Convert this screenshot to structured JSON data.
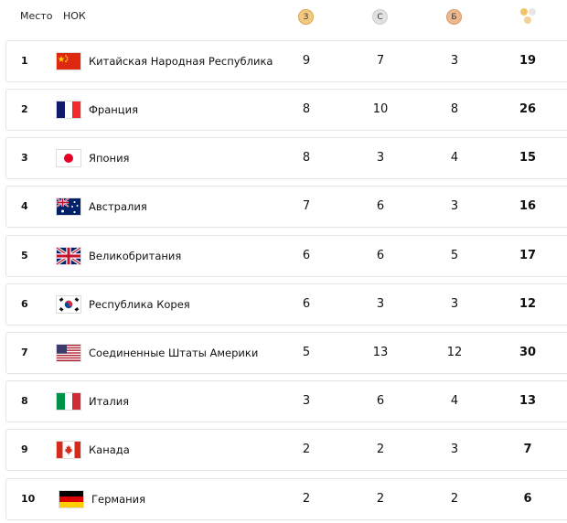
{
  "header": {
    "rank_label": "Место",
    "noc_label": "НОК",
    "gold_label": "З",
    "silver_label": "С",
    "bronze_label": "Б",
    "total_icon": "medals-icon"
  },
  "colors": {
    "gold": "#f3c980",
    "silver": "#e1e1e1",
    "bronze": "#edb88d",
    "row_border": "#e4e4e4"
  },
  "rows": [
    {
      "rank": "1",
      "country": "Китайская Народная Республика",
      "flag": "china-flag-icon",
      "gold": "9",
      "silver": "7",
      "bronze": "3",
      "total": "19"
    },
    {
      "rank": "2",
      "country": "Франция",
      "flag": "france-flag-icon",
      "gold": "8",
      "silver": "10",
      "bronze": "8",
      "total": "26"
    },
    {
      "rank": "3",
      "country": "Япония",
      "flag": "japan-flag-icon",
      "gold": "8",
      "silver": "3",
      "bronze": "4",
      "total": "15"
    },
    {
      "rank": "4",
      "country": "Австралия",
      "flag": "australia-flag-icon",
      "gold": "7",
      "silver": "6",
      "bronze": "3",
      "total": "16"
    },
    {
      "rank": "5",
      "country": "Великобритания",
      "flag": "uk-flag-icon",
      "gold": "6",
      "silver": "6",
      "bronze": "5",
      "total": "17"
    },
    {
      "rank": "6",
      "country": "Республика Корея",
      "flag": "korea-flag-icon",
      "gold": "6",
      "silver": "3",
      "bronze": "3",
      "total": "12"
    },
    {
      "rank": "7",
      "country": "Соединенные Штаты Америки",
      "flag": "usa-flag-icon",
      "gold": "5",
      "silver": "13",
      "bronze": "12",
      "total": "30"
    },
    {
      "rank": "8",
      "country": "Италия",
      "flag": "italy-flag-icon",
      "gold": "3",
      "silver": "6",
      "bronze": "4",
      "total": "13"
    },
    {
      "rank": "9",
      "country": "Канада",
      "flag": "canada-flag-icon",
      "gold": "2",
      "silver": "2",
      "bronze": "3",
      "total": "7"
    },
    {
      "rank": "10",
      "country": "Германия",
      "flag": "germany-flag-icon",
      "gold": "2",
      "silver": "2",
      "bronze": "2",
      "total": "6"
    }
  ]
}
